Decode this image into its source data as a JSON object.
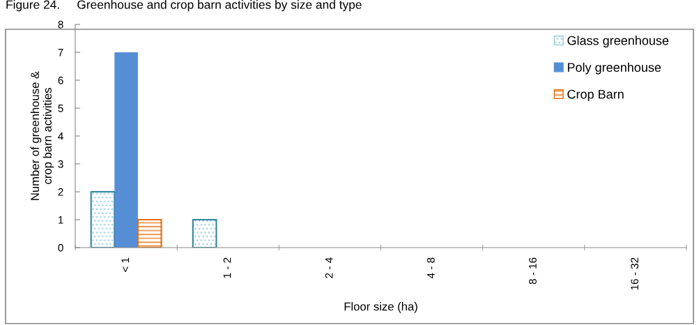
{
  "chart_data": {
    "type": "bar",
    "title": "Figure 24.     Greenhouse and crop barn activities by size and type",
    "categories": [
      "< 1",
      "1 - 2",
      "2 - 4",
      "4 - 8",
      "8 - 16",
      "16 - 32"
    ],
    "series": [
      {
        "name": "Glass greenhouse",
        "color": "#92cddc",
        "values": [
          2,
          1,
          0,
          0,
          0,
          0
        ]
      },
      {
        "name": "Poly greenhouse",
        "color": "#558ed5",
        "values": [
          7,
          0,
          0,
          0,
          0,
          0
        ]
      },
      {
        "name": "Crop Barn",
        "color": "#e36c09",
        "values": [
          1,
          0,
          0,
          0,
          0,
          0
        ]
      }
    ],
    "xlabel": "Floor size (ha)",
    "ylabel": "Number of greenhouse &\ncrop barn activities",
    "ylim": [
      0,
      8
    ],
    "yticks": [
      0,
      1,
      2,
      3,
      4,
      5,
      6,
      7,
      8
    ],
    "grid": false,
    "legend": "top right"
  }
}
